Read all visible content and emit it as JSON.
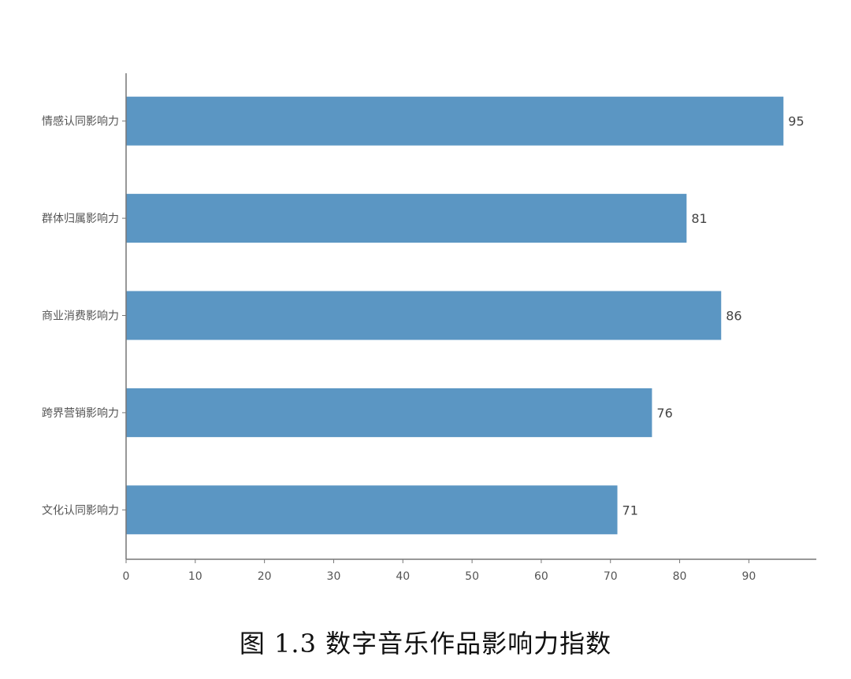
{
  "caption": "图 1.3 数字音乐作品影响力指数",
  "chart_data": {
    "type": "bar",
    "orientation": "horizontal",
    "title": "",
    "xlabel": "",
    "ylabel": "",
    "categories": [
      "情感认同影响力",
      "群体归属影响力",
      "商业消费影响力",
      "跨界营销影响力",
      "文化认同影响力"
    ],
    "values": [
      95,
      81,
      86,
      76,
      71
    ],
    "xlim": [
      0,
      99.75
    ],
    "xticks": [
      0,
      10,
      20,
      30,
      40,
      50,
      60,
      70,
      80,
      90
    ],
    "data_labels": true,
    "grid": false,
    "legend": "none",
    "bar_color": "#5b96c3",
    "axis_color": "#777777"
  }
}
